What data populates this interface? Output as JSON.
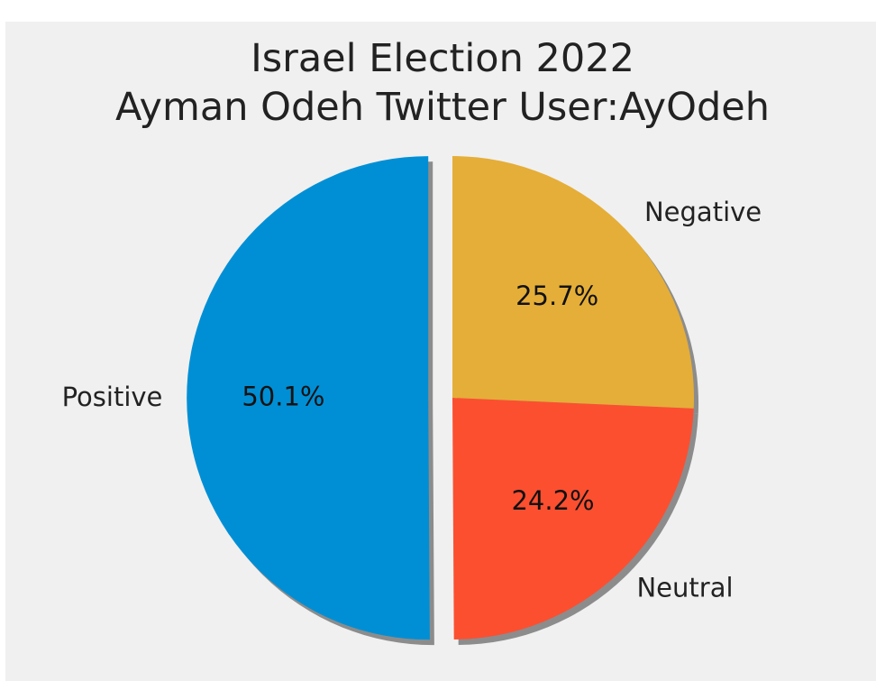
{
  "chart_data": {
    "type": "pie",
    "title": [
      "Israel Election 2022",
      "Ayman Odeh Twitter User:AyOdeh"
    ],
    "slices": [
      {
        "label": "Positive",
        "value": 50.1,
        "pct_label": "50.1%",
        "color": "#008fd5",
        "exploded": true
      },
      {
        "label": "Neutral",
        "value": 24.2,
        "pct_label": "24.2%",
        "color": "#fc4f30",
        "exploded": false
      },
      {
        "label": "Negative",
        "value": 25.7,
        "pct_label": "25.7%",
        "color": "#e5ae38",
        "exploded": false
      }
    ],
    "start_angle_deg": 90,
    "direction": "counterclockwise",
    "shadow": true,
    "background": "#f0f0f0"
  }
}
